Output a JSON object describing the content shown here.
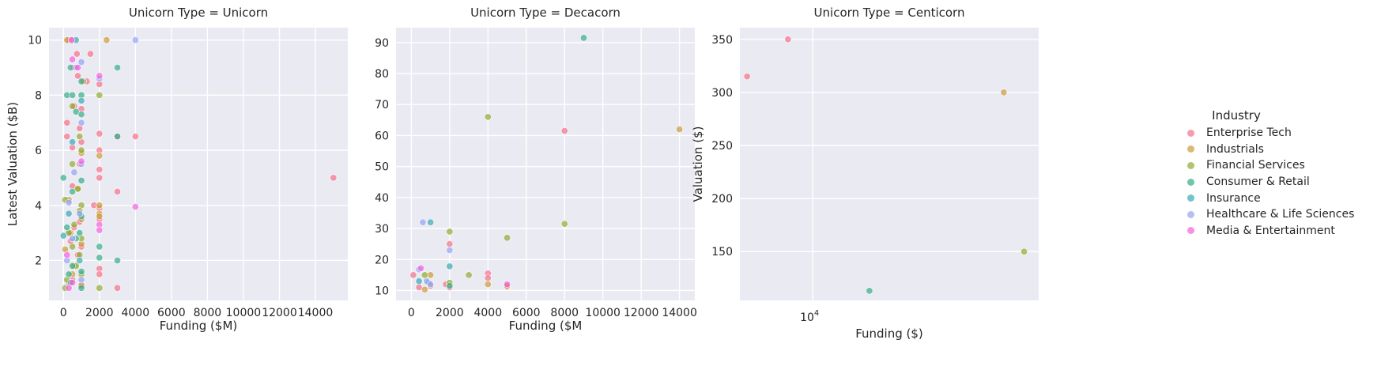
{
  "chart_data": [
    {
      "type": "scatter",
      "title": "Unicorn Type = Unicorn",
      "xlabel": "Funding ($M)",
      "ylabel": "Latest Valuation ($B)",
      "x_scale": "linear",
      "xlim": [
        -800,
        15800
      ],
      "ylim": [
        0.55,
        10.45
      ],
      "xticks": [
        0,
        2000,
        4000,
        6000,
        8000,
        10000,
        12000,
        14000
      ],
      "xtick_labels": [
        "0",
        "2000",
        "4000",
        "6000",
        "8000",
        "10000",
        "12000",
        "14000"
      ],
      "yticks": [
        2,
        4,
        6,
        8,
        10
      ],
      "ytick_labels": [
        "2",
        "4",
        "6",
        "8",
        "10"
      ],
      "grid": true,
      "series": [
        {
          "name": "Enterprise Tech",
          "points": [
            [
              300,
              10
            ],
            [
              500,
              10
            ],
            [
              750,
              9.5
            ],
            [
              1500,
              9.5
            ],
            [
              600,
              9
            ],
            [
              1300,
              8.5
            ],
            [
              800,
              8.7
            ],
            [
              2000,
              8.4
            ],
            [
              600,
              7.6
            ],
            [
              1000,
              7.5
            ],
            [
              200,
              7
            ],
            [
              900,
              6.8
            ],
            [
              2000,
              6.6
            ],
            [
              4000,
              6.5
            ],
            [
              200,
              6.5
            ],
            [
              3000,
              6.5
            ],
            [
              2000,
              6
            ],
            [
              500,
              6.1
            ],
            [
              1000,
              6.3
            ],
            [
              2000,
              5.3
            ],
            [
              2000,
              5
            ],
            [
              900,
              5.5
            ],
            [
              15000,
              5
            ],
            [
              3000,
              4.5
            ],
            [
              500,
              4.7
            ],
            [
              1700,
              4
            ],
            [
              2000,
              3.9
            ],
            [
              2000,
              3.5
            ],
            [
              900,
              3.4
            ],
            [
              600,
              3.2
            ],
            [
              300,
              3
            ],
            [
              400,
              2.7
            ],
            [
              1000,
              2.5
            ],
            [
              2000,
              1.7
            ],
            [
              2000,
              1.5
            ],
            [
              300,
              1.2
            ],
            [
              3000,
              1
            ],
            [
              500,
              1.3
            ],
            [
              1000,
              1.1
            ],
            [
              800,
              2.2
            ]
          ]
        },
        {
          "name": "Industrials",
          "points": [
            [
              200,
              10
            ],
            [
              2400,
              10
            ],
            [
              1100,
              8.5
            ],
            [
              2000,
              5.8
            ],
            [
              1000,
              5.9
            ],
            [
              2000,
              4
            ],
            [
              2000,
              3.7
            ],
            [
              1000,
              3.5
            ],
            [
              2000,
              3.6
            ],
            [
              400,
              3
            ],
            [
              100,
              2.4
            ],
            [
              1000,
              2.6
            ],
            [
              600,
              1.8
            ],
            [
              500,
              1.5
            ],
            [
              1000,
              1.1
            ],
            [
              800,
              4.6
            ],
            [
              300,
              4.2
            ]
          ]
        },
        {
          "name": "Financial Services",
          "points": [
            [
              2000,
              8
            ],
            [
              500,
              7.6
            ],
            [
              900,
              6.5
            ],
            [
              1000,
              6
            ],
            [
              500,
              5.5
            ],
            [
              800,
              4.6
            ],
            [
              1000,
              4
            ],
            [
              100,
              4.2
            ],
            [
              900,
              3.8
            ],
            [
              600,
              3.3
            ],
            [
              300,
              3
            ],
            [
              1000,
              2.8
            ],
            [
              500,
              2.5
            ],
            [
              900,
              2.2
            ],
            [
              1000,
              1.5
            ],
            [
              200,
              1.3
            ],
            [
              2000,
              1
            ],
            [
              700,
              1.8
            ],
            [
              100,
              1
            ]
          ]
        },
        {
          "name": "Consumer & Retail",
          "points": [
            [
              400,
              9
            ],
            [
              3000,
              9
            ],
            [
              200,
              8
            ],
            [
              500,
              8
            ],
            [
              1000,
              8.5
            ],
            [
              1000,
              8
            ],
            [
              700,
              7.4
            ],
            [
              1000,
              7.3
            ],
            [
              3000,
              6.5
            ],
            [
              0,
              5
            ],
            [
              1000,
              4.9
            ],
            [
              500,
              4.5
            ],
            [
              1000,
              3.6
            ],
            [
              200,
              3.2
            ],
            [
              900,
              3
            ],
            [
              2000,
              2.5
            ],
            [
              2000,
              2.1
            ],
            [
              3000,
              2
            ],
            [
              500,
              1.8
            ],
            [
              1000,
              1.6
            ],
            [
              1000,
              1
            ],
            [
              300,
              1.5
            ],
            [
              700,
              2.8
            ],
            [
              400,
              1.2
            ]
          ]
        },
        {
          "name": "Insurance",
          "points": [
            [
              700,
              10
            ],
            [
              1000,
              7.8
            ],
            [
              500,
              6.3
            ],
            [
              0,
              2.9
            ],
            [
              300,
              3.7
            ],
            [
              900,
              2
            ]
          ]
        },
        {
          "name": "Healthcare & Life Sciences",
          "points": [
            [
              4000,
              10
            ],
            [
              1000,
              9.2
            ],
            [
              700,
              9
            ],
            [
              1000,
              7
            ],
            [
              2000,
              8.6
            ],
            [
              600,
              5.2
            ],
            [
              1000,
              5.5
            ],
            [
              300,
              4.1
            ],
            [
              900,
              3.7
            ],
            [
              500,
              2.8
            ],
            [
              200,
              2
            ],
            [
              1000,
              1.3
            ]
          ]
        },
        {
          "name": "Media & Entertainment",
          "points": [
            [
              450,
              10
            ],
            [
              500,
              9.3
            ],
            [
              800,
              9
            ],
            [
              2000,
              8.7
            ],
            [
              1000,
              5.6
            ],
            [
              4000,
              3.95
            ],
            [
              2000,
              3.3
            ],
            [
              2000,
              3.1
            ],
            [
              300,
              1
            ],
            [
              500,
              1.2
            ],
            [
              200,
              2.2
            ]
          ]
        }
      ]
    },
    {
      "type": "scatter",
      "title": "Unicorn Type = Decacorn",
      "xlabel": "Funding ($M",
      "ylabel": "",
      "x_scale": "linear",
      "xlim": [
        -800,
        14800
      ],
      "ylim": [
        6.8,
        94.8
      ],
      "xticks": [
        0,
        2000,
        4000,
        6000,
        8000,
        10000,
        12000,
        14000
      ],
      "xtick_labels": [
        "0",
        "2000",
        "4000",
        "6000",
        "8000",
        "10000",
        "12000",
        "14000"
      ],
      "yticks": [
        10,
        20,
        30,
        40,
        50,
        60,
        70,
        80,
        90
      ],
      "ytick_labels": [
        "10",
        "20",
        "30",
        "40",
        "50",
        "60",
        "70",
        "80",
        "90"
      ],
      "grid": true,
      "series": [
        {
          "name": "Enterprise Tech",
          "points": [
            [
              8000,
              61.5
            ],
            [
              2000,
              25
            ],
            [
              4000,
              15.5
            ],
            [
              4000,
              14
            ],
            [
              100,
              15
            ],
            [
              1800,
              12
            ],
            [
              2000,
              11
            ],
            [
              5000,
              11.2
            ],
            [
              400,
              11
            ],
            [
              1000,
              11.5
            ]
          ]
        },
        {
          "name": "Industrials",
          "points": [
            [
              14000,
              62
            ],
            [
              700,
              10.3
            ],
            [
              1000,
              15
            ],
            [
              4000,
              12
            ],
            [
              5000,
              11.5
            ]
          ]
        },
        {
          "name": "Financial Services",
          "points": [
            [
              4000,
              66
            ],
            [
              8000,
              31.5
            ],
            [
              2000,
              29
            ],
            [
              5000,
              27
            ],
            [
              3000,
              15
            ],
            [
              700,
              15
            ],
            [
              2000,
              12.5
            ]
          ]
        },
        {
          "name": "Consumer & Retail",
          "points": [
            [
              9000,
              91.5
            ],
            [
              900,
              12.5
            ],
            [
              2000,
              11.5
            ]
          ]
        },
        {
          "name": "Insurance",
          "points": [
            [
              2000,
              17.8
            ],
            [
              1000,
              32
            ],
            [
              400,
              13
            ]
          ]
        },
        {
          "name": "Healthcare & Life Sciences",
          "points": [
            [
              600,
              32
            ],
            [
              2000,
              23
            ],
            [
              800,
              13
            ],
            [
              1000,
              12
            ],
            [
              400,
              16.8
            ]
          ]
        },
        {
          "name": "Media & Entertainment",
          "points": [
            [
              500,
              17.2
            ],
            [
              5000,
              12
            ]
          ]
        }
      ]
    },
    {
      "type": "scatter",
      "title": "Unicorn Type = Centicorn",
      "xlabel": "Funding ($)",
      "ylabel": "Valuation ($)",
      "x_scale": "log",
      "xlim": [
        6200,
        44000
      ],
      "ylim": [
        104,
        361
      ],
      "xticks": [
        10000
      ],
      "xtick_labels": [
        "10^4"
      ],
      "yticks": [
        150,
        200,
        250,
        300,
        350
      ],
      "ytick_labels": [
        "150",
        "200",
        "250",
        "300",
        "350"
      ],
      "grid": true,
      "series": [
        {
          "name": "Enterprise Tech",
          "points": [
            [
              6500,
              315
            ],
            [
              8500,
              350
            ]
          ]
        },
        {
          "name": "Industrials",
          "points": [
            [
              35000,
              300
            ]
          ]
        },
        {
          "name": "Financial Services",
          "points": [
            [
              40000,
              150
            ]
          ]
        },
        {
          "name": "Consumer & Retail",
          "points": [
            [
              14500,
              113
            ]
          ]
        }
      ]
    }
  ],
  "legend": {
    "title": "Industry",
    "placement": "right",
    "items": [
      {
        "label": "Enterprise Tech",
        "color": "#f77189"
      },
      {
        "label": "Industrials",
        "color": "#cc9a3a"
      },
      {
        "label": "Financial Services",
        "color": "#8fab32"
      },
      {
        "label": "Consumer & Retail",
        "color": "#36ad8a"
      },
      {
        "label": "Insurance",
        "color": "#38a9b5"
      },
      {
        "label": "Healthcare & Life Sciences",
        "color": "#95a2f4"
      },
      {
        "label": "Media & Entertainment",
        "color": "#f461dd"
      }
    ]
  },
  "colors": {
    "panel_bg": "#eaeaf2",
    "grid": "#ffffff",
    "text": "#262626"
  }
}
